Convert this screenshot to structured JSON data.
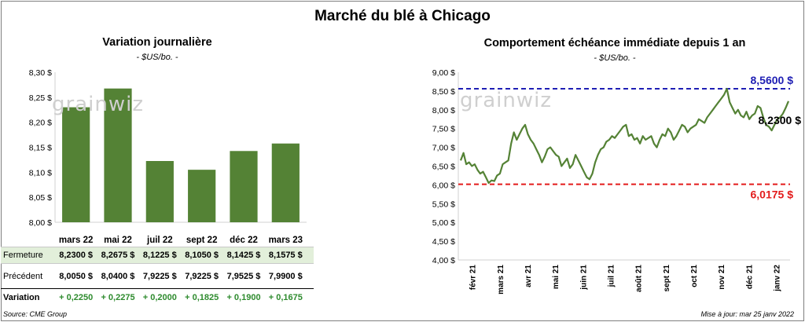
{
  "main_title": "Marché du blé à Chicago",
  "left_panel": {
    "title": "Variation journalière",
    "subtitle": "- $US/bo. -",
    "row_labels": {
      "close": "Fermeture",
      "previous": "Précédent",
      "change": "Variation"
    },
    "close_text": [
      "8,2300  $",
      "8,2675  $",
      "8,1225  $",
      "8,1050  $",
      "8,1425  $",
      "8,1575  $"
    ],
    "previous_text": [
      "8,0050  $",
      "8,0400  $",
      "7,9225  $",
      "7,9225  $",
      "7,9525  $",
      "7,9900  $"
    ],
    "change_text": [
      "+ 0,2250",
      "+ 0,2275",
      "+ 0,2000",
      "+ 0,1825",
      "+ 0,1900",
      "+ 0,1675"
    ]
  },
  "right_panel": {
    "title": "Comportement  échéance immédiate depuis 1 an",
    "subtitle": "- $US/bo. -",
    "high_label": "8,5600 $",
    "low_label": "6,0175 $",
    "last_label": "8,2300 $"
  },
  "watermark": "grainwiz",
  "source": "Source: CME Group",
  "updated": "Mise à jour: mar 25 janv 2022",
  "colors": {
    "bar": "#548235",
    "line": "#548235",
    "high": "#1f1fb4",
    "low": "#e31b1b",
    "close_row": "#e2efda",
    "change": "#2e8b2e"
  },
  "chart_data": [
    {
      "type": "bar",
      "categories": [
        "mars 22",
        "mai 22",
        "juil 22",
        "sept 22",
        "déc 22",
        "mars 23"
      ],
      "values": [
        8.23,
        8.2675,
        8.1225,
        8.105,
        8.1425,
        8.1575
      ],
      "ylim": [
        8.0,
        8.3
      ],
      "yticks": [
        "8,00 $",
        "8,05 $",
        "8,10 $",
        "8,15 $",
        "8,20 $",
        "8,25 $",
        "8,30 $"
      ],
      "grid": false
    },
    {
      "type": "line",
      "x_start": "févr 21",
      "x_end": "janv 22",
      "xticks": [
        "févr 21",
        "mars 21",
        "avr 21",
        "mai 21",
        "juin 21",
        "juil 21",
        "août 21",
        "sept 21",
        "oct 21",
        "nov 21",
        "déc 21",
        "janv 22"
      ],
      "series": [
        {
          "values": [
            6.65,
            6.85,
            6.55,
            6.6,
            6.5,
            6.55,
            6.4,
            6.3,
            6.35,
            6.2,
            6.05,
            6.12,
            6.1,
            6.25,
            6.3,
            6.55,
            6.6,
            6.65,
            7.1,
            7.4,
            7.2,
            7.35,
            7.5,
            7.6,
            7.35,
            7.2,
            7.1,
            6.95,
            6.8,
            6.6,
            6.75,
            6.95,
            7.0,
            6.9,
            6.8,
            6.75,
            6.5,
            6.6,
            6.7,
            6.45,
            6.55,
            6.8,
            6.65,
            6.5,
            6.35,
            6.2,
            6.15,
            6.3,
            6.6,
            6.8,
            6.95,
            7.0,
            7.15,
            7.2,
            7.3,
            7.25,
            7.35,
            7.45,
            7.55,
            7.6,
            7.3,
            7.35,
            7.2,
            7.25,
            7.1,
            7.3,
            7.2,
            7.25,
            7.3,
            7.1,
            7.0,
            7.2,
            7.35,
            7.3,
            7.5,
            7.4,
            7.2,
            7.3,
            7.45,
            7.6,
            7.55,
            7.4,
            7.5,
            7.55,
            7.6,
            7.75,
            7.7,
            7.65,
            7.8,
            7.9,
            8.0,
            8.1,
            8.2,
            8.3,
            8.4,
            8.56,
            8.2,
            8.05,
            7.9,
            8.0,
            7.85,
            7.8,
            7.95,
            7.75,
            7.85,
            7.9,
            8.1,
            8.05,
            7.8,
            7.6,
            7.55,
            7.45,
            7.6,
            7.75,
            7.8,
            7.9,
            8.05,
            8.23
          ]
        }
      ],
      "ylim": [
        4.0,
        9.0
      ],
      "yticks": [
        "4,00 $",
        "4,50 $",
        "5,00 $",
        "5,50 $",
        "6,00 $",
        "6,50 $",
        "7,00 $",
        "7,50 $",
        "8,00 $",
        "8,50 $",
        "9,00 $"
      ],
      "high": 8.56,
      "low": 6.0175,
      "last": 8.23,
      "grid": false
    }
  ]
}
